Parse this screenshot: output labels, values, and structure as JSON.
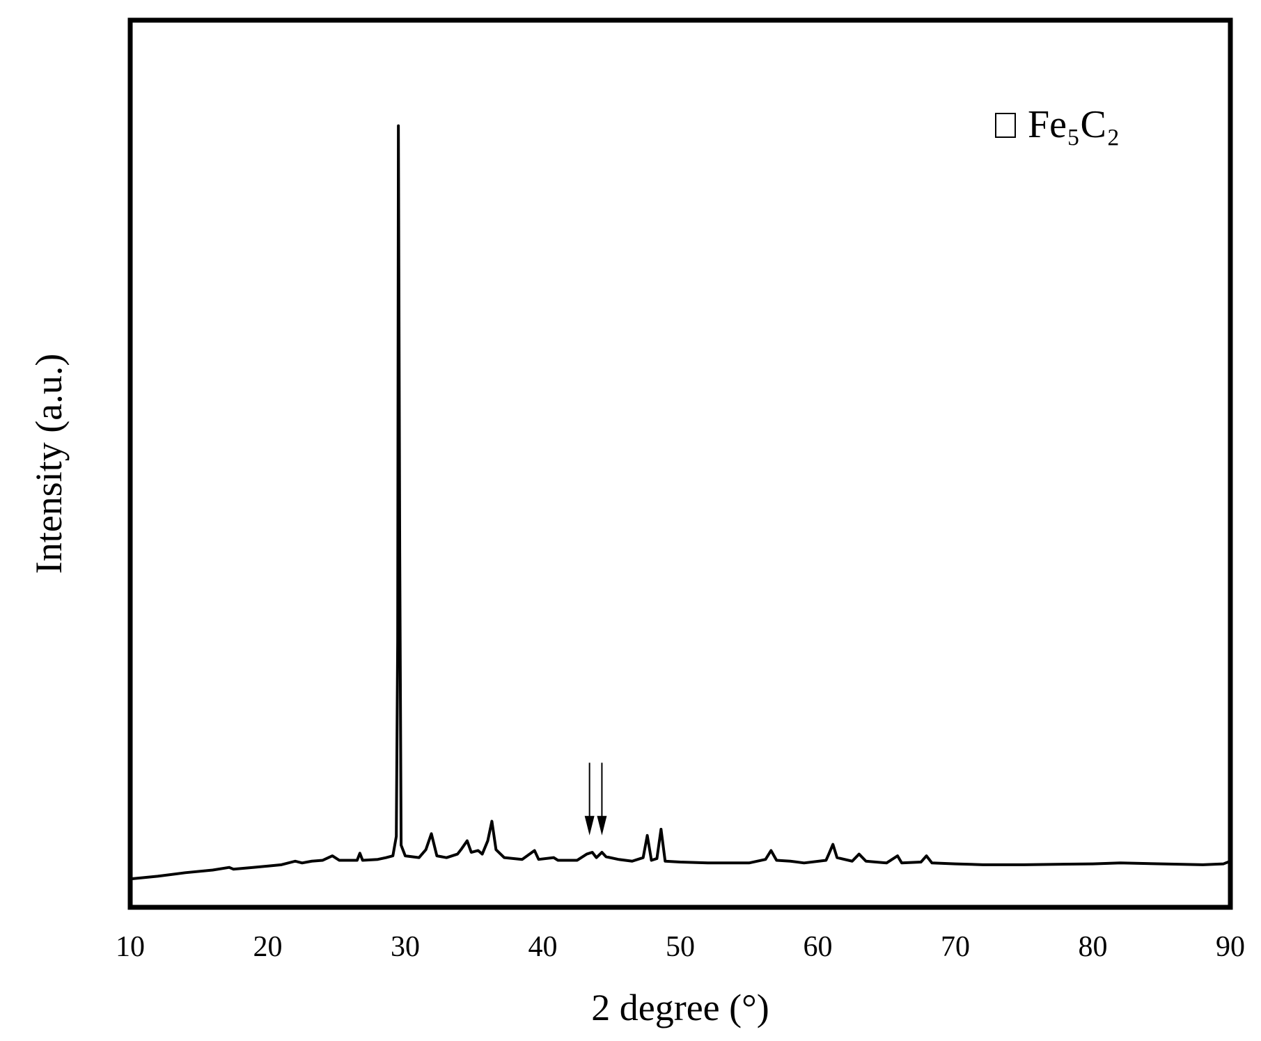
{
  "chart_data": {
    "type": "line",
    "x_label": "2 degree (°)",
    "y_label": "Intensity (a.u.)",
    "legend_text": "Fe₅C₂",
    "xlim": [
      10,
      90
    ],
    "xticks": [
      10,
      20,
      30,
      40,
      50,
      60,
      70,
      80,
      90
    ],
    "ylim": [
      0,
      100
    ],
    "yticks": [],
    "series": [
      {
        "color": "#000000",
        "x": [
          10,
          12,
          14,
          16,
          17.2,
          17.5,
          19,
          21,
          22,
          22.5,
          23.2,
          24,
          24.7,
          25.2,
          26.5,
          26.7,
          26.9,
          28,
          28.6,
          29.1,
          29.35,
          29.45,
          29.5,
          29.6,
          29.7,
          30,
          31,
          31.5,
          31.9,
          32.3,
          33,
          33.8,
          34.1,
          34.5,
          34.8,
          35.3,
          35.6,
          36,
          36.3,
          36.6,
          37.2,
          38.5,
          39.4,
          39.7,
          40.8,
          41.1,
          42.5,
          43.2,
          43.6,
          43.9,
          44.3,
          44.6,
          45.5,
          46.5,
          47.3,
          47.6,
          47.9,
          48.3,
          48.6,
          48.9,
          50,
          52,
          55,
          56.2,
          56.6,
          57,
          58,
          59,
          60.6,
          60.8,
          61.1,
          61.4,
          62.5,
          63,
          63.5,
          65,
          65.8,
          66.1,
          67.5,
          67.9,
          68.3,
          70,
          72,
          75,
          80,
          82,
          85,
          88,
          89.5,
          90
        ],
        "values": [
          3.2,
          3.5,
          3.9,
          4.2,
          4.5,
          4.3,
          4.5,
          4.8,
          5.2,
          5.0,
          5.2,
          5.3,
          5.8,
          5.3,
          5.3,
          6.1,
          5.3,
          5.4,
          5.6,
          5.8,
          8,
          30,
          88.1,
          40,
          7,
          5.8,
          5.6,
          6.5,
          8.3,
          5.8,
          5.6,
          6.0,
          6.6,
          7.5,
          6.2,
          6.4,
          6.0,
          7.5,
          9.7,
          6.5,
          5.6,
          5.4,
          6.4,
          5.4,
          5.6,
          5.3,
          5.3,
          6.0,
          6.2,
          5.6,
          6.2,
          5.7,
          5.4,
          5.2,
          5.6,
          8.1,
          5.3,
          5.5,
          8.8,
          5.2,
          5.1,
          5.0,
          5.0,
          5.4,
          6.4,
          5.3,
          5.2,
          5.0,
          5.3,
          6.0,
          7.1,
          5.6,
          5.2,
          6.0,
          5.2,
          5.0,
          5.8,
          5.0,
          5.1,
          5.8,
          5.0,
          4.9,
          4.8,
          4.8,
          4.9,
          5.0,
          4.9,
          4.8,
          4.9,
          5.2
        ]
      }
    ],
    "arrows": [
      {
        "x": 43.4,
        "y_from": 16.3,
        "y_to": 8.1
      },
      {
        "x": 44.3,
        "y_from": 16.3,
        "y_to": 8.1
      }
    ]
  }
}
